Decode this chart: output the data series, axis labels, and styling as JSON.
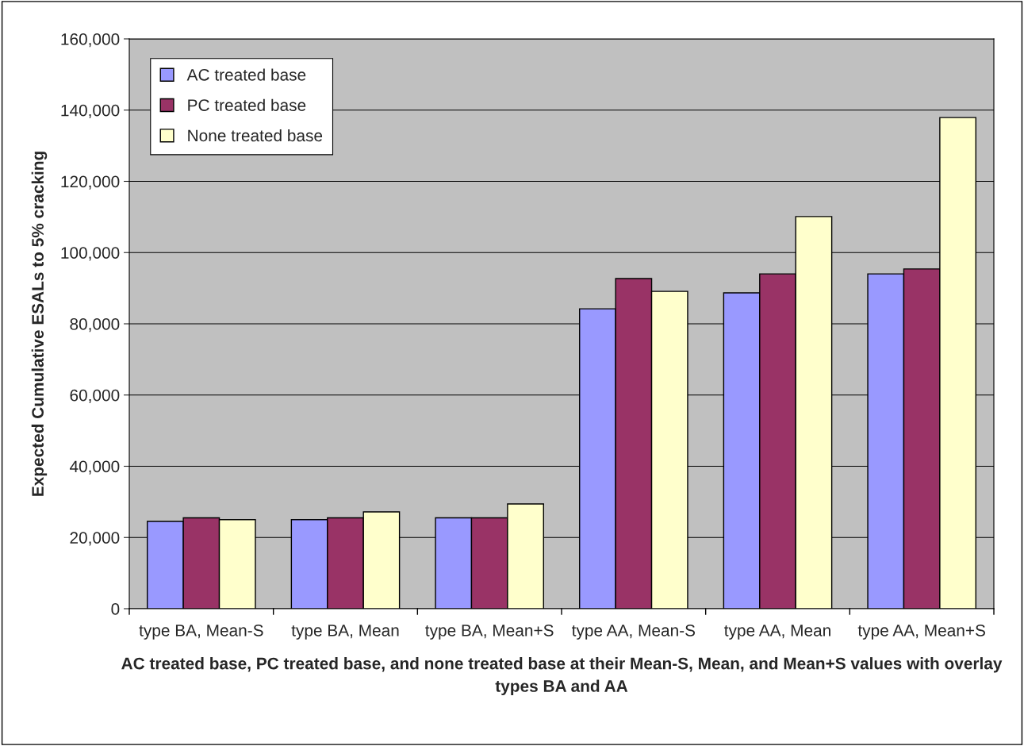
{
  "chart_data": {
    "type": "bar",
    "xlabel": "AC treated base, PC treated base, and none treated base at their Mean-S, Mean, and Mean+S values with overlay types BA and AA",
    "ylabel": "Expected Cumulative ESALs to 5% cracking",
    "categories": [
      "type BA, Mean-S",
      "type BA, Mean",
      "type BA, Mean+S",
      "type AA, Mean-S",
      "type AA, Mean",
      "type AA, Mean+S"
    ],
    "series": [
      {
        "name": "AC treated base",
        "color": "#9999ff",
        "values": [
          24500,
          25000,
          25500,
          84200,
          88700,
          94000
        ]
      },
      {
        "name": "PC treated base",
        "color": "#993366",
        "values": [
          25500,
          25500,
          25500,
          92700,
          94000,
          95400
        ]
      },
      {
        "name": "None treated base",
        "color": "#ffffcc",
        "values": [
          25000,
          27200,
          29400,
          89100,
          110100,
          137900
        ]
      }
    ],
    "ylim": [
      0,
      160000
    ],
    "yticks": [
      {
        "value": 0,
        "label": "0"
      },
      {
        "value": 20000,
        "label": "20,000"
      },
      {
        "value": 40000,
        "label": "40,000"
      },
      {
        "value": 60000,
        "label": "60,000"
      },
      {
        "value": 80000,
        "label": "80,000"
      },
      {
        "value": 100000,
        "label": "100,000"
      },
      {
        "value": 120000,
        "label": "120,000"
      },
      {
        "value": 140000,
        "label": "140,000"
      },
      {
        "value": 160000,
        "label": "160,000"
      }
    ],
    "grid": "y",
    "legend": "top left"
  }
}
